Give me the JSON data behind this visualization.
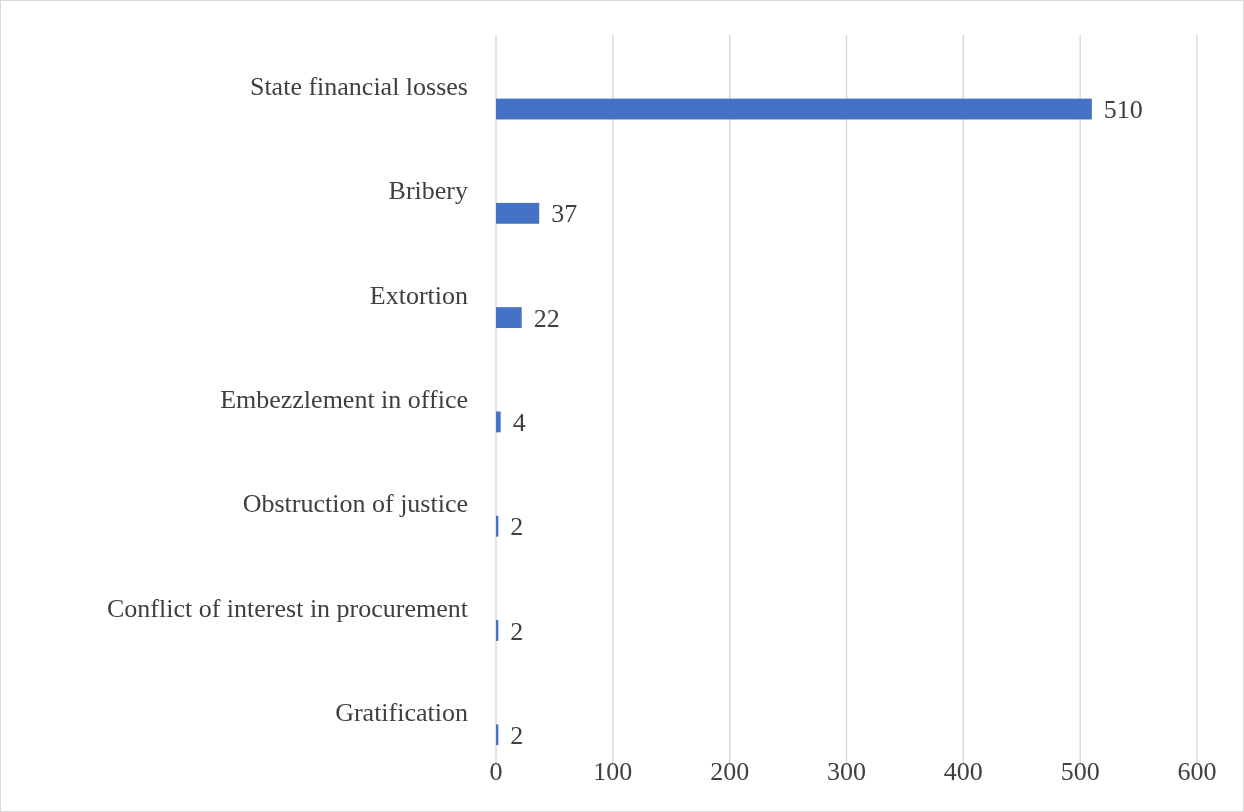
{
  "chart_data": {
    "type": "bar",
    "orientation": "horizontal",
    "categories": [
      "State financial losses",
      "Bribery",
      "Extortion",
      "Embezzlement in office",
      "Obstruction of justice",
      "Conflict of interest in procurement",
      "Gratification"
    ],
    "values": [
      510,
      37,
      22,
      4,
      2,
      2,
      2
    ],
    "color": "#4472c4",
    "xlim": [
      0,
      600
    ],
    "xticks": [
      0,
      100,
      200,
      300,
      400,
      500,
      600
    ],
    "grid": "x",
    "data_labels": true
  }
}
